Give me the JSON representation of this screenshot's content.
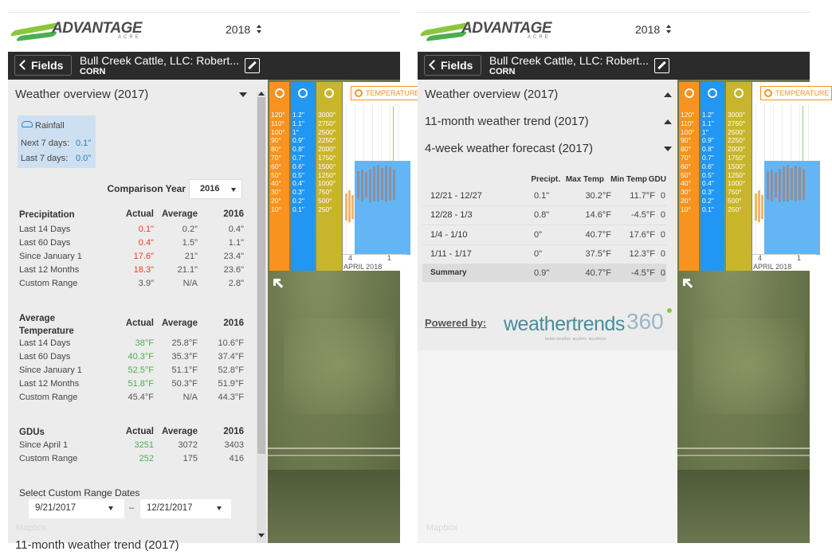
{
  "header": {
    "logo": "ADVANTAGE",
    "logo_sub": "ACRE",
    "year": "2018"
  },
  "nav": {
    "back": "Fields",
    "title": "Bull Creek Cattle, LLC: Robert...",
    "crop": "CORN"
  },
  "strip": {
    "button": "TEMPERATURE",
    "temps": [
      "120°",
      "110°",
      "100°",
      "90°",
      "80°",
      "70°",
      "60°",
      "50°",
      "40°",
      "30°",
      "20°",
      "10°"
    ],
    "precip": [
      "1.2\"",
      "1.1\"",
      "1\"",
      "0.9\"",
      "0.8\"",
      "0.7\"",
      "0.6\"",
      "0.5\"",
      "0.4\"",
      "0.3\"",
      "0.2\"",
      "0.1\""
    ],
    "gdu": [
      "3000°",
      "2750°",
      "2500°",
      "2250°",
      "2000°",
      "1750°",
      "1500°",
      "1250°",
      "1000°",
      "750°",
      "500°",
      "250°"
    ],
    "dates": [
      "4",
      "1"
    ],
    "month": "APRIL 2018"
  },
  "map_credit": "Mapbox",
  "left": {
    "title": "Weather overview (2017)",
    "rainfall": {
      "label": "Rainfall",
      "next_label": "Next 7 days:",
      "next": "0.1\"",
      "last_label": "Last 7 days:",
      "last": "0.0\""
    },
    "comparison": {
      "label": "Comparison Year",
      "value": "2016"
    },
    "tables": [
      {
        "title": "Precipitation",
        "columns": [
          "Actual",
          "Average",
          "2016"
        ],
        "rows": [
          {
            "label": "Last 14 Days",
            "cells": [
              "0.1\"",
              "0.2\"",
              "0.4\""
            ],
            "actual_color": "#e8412b"
          },
          {
            "label": "Last 60 Days",
            "cells": [
              "0.4\"",
              "1.5\"",
              "1.1\""
            ],
            "actual_color": "#e8412b"
          },
          {
            "label": "Since January 1",
            "cells": [
              "17.6\"",
              "21\"",
              "23.4\""
            ],
            "actual_color": "#e8412b"
          },
          {
            "label": "Last 12 Months",
            "cells": [
              "18.3\"",
              "21.1\"",
              "23.6\""
            ],
            "actual_color": "#e8412b"
          },
          {
            "label": "Custom Range",
            "cells": [
              "3.9\"",
              "N/A",
              "2.8\""
            ],
            "actual_color": "#555555"
          }
        ]
      },
      {
        "title": "Average Temperature",
        "columns": [
          "Actual",
          "Average",
          "2016"
        ],
        "rows": [
          {
            "label": "Last 14 Days",
            "cells": [
              "38°F",
              "25.8°F",
              "10.6°F"
            ],
            "actual_color": "#4caf50"
          },
          {
            "label": "Last 60 Days",
            "cells": [
              "40.3°F",
              "35.3°F",
              "37.4°F"
            ],
            "actual_color": "#4caf50"
          },
          {
            "label": "Since January 1",
            "cells": [
              "52.5°F",
              "51.1°F",
              "52.8°F"
            ],
            "actual_color": "#4caf50"
          },
          {
            "label": "Last 12 Months",
            "cells": [
              "51.8°F",
              "50.3°F",
              "51.9°F"
            ],
            "actual_color": "#4caf50"
          },
          {
            "label": "Custom Range",
            "cells": [
              "45.4°F",
              "N/A",
              "44.3°F"
            ],
            "actual_color": "#555555"
          }
        ]
      },
      {
        "title": "GDUs",
        "columns": [
          "Actual",
          "Average",
          "2016"
        ],
        "rows": [
          {
            "label": "Since April 1",
            "cells": [
              "3251",
              "3072",
              "3403"
            ],
            "actual_color": "#4caf50"
          },
          {
            "label": "Custom Range",
            "cells": [
              "252",
              "175",
              "416"
            ],
            "actual_color": "#4caf50"
          }
        ]
      }
    ],
    "custom_range": {
      "label": "Select Custom Range Dates",
      "start": "9/21/2017",
      "separator": "–",
      "end": "12/21/2017"
    },
    "next_section": "11-month weather trend (2017)"
  },
  "right": {
    "sections": [
      "Weather overview (2017)",
      "11-month weather trend (2017)",
      "4-week weather forecast (2017)"
    ],
    "forecast": {
      "columns": [
        "Precipt.",
        "Max Temp",
        "Min Temp",
        "GDU"
      ],
      "rows": [
        {
          "label": "12/21 - 12/27",
          "cells": [
            "0.1\"",
            "30.2°F",
            "11.7°F",
            "0"
          ]
        },
        {
          "label": "12/28 - 1/3",
          "cells": [
            "0.8\"",
            "14.6°F",
            "-4.5°F",
            "0"
          ]
        },
        {
          "label": "1/4 - 1/10",
          "cells": [
            "0\"",
            "40.7°F",
            "17.6°F",
            "0"
          ]
        },
        {
          "label": "1/11 - 1/17",
          "cells": [
            "0\"",
            "37.5°F",
            "12.3°F",
            "0"
          ]
        }
      ],
      "summary": {
        "label": "Summary",
        "cells": [
          "0.9\"",
          "40.7°F",
          "-4.5°F",
          "0"
        ]
      }
    },
    "powered": {
      "label": "Powered by:",
      "brand": "weathertrends",
      "brand_num": "360",
      "tagline": "better weather. anytime. anywhere"
    }
  }
}
